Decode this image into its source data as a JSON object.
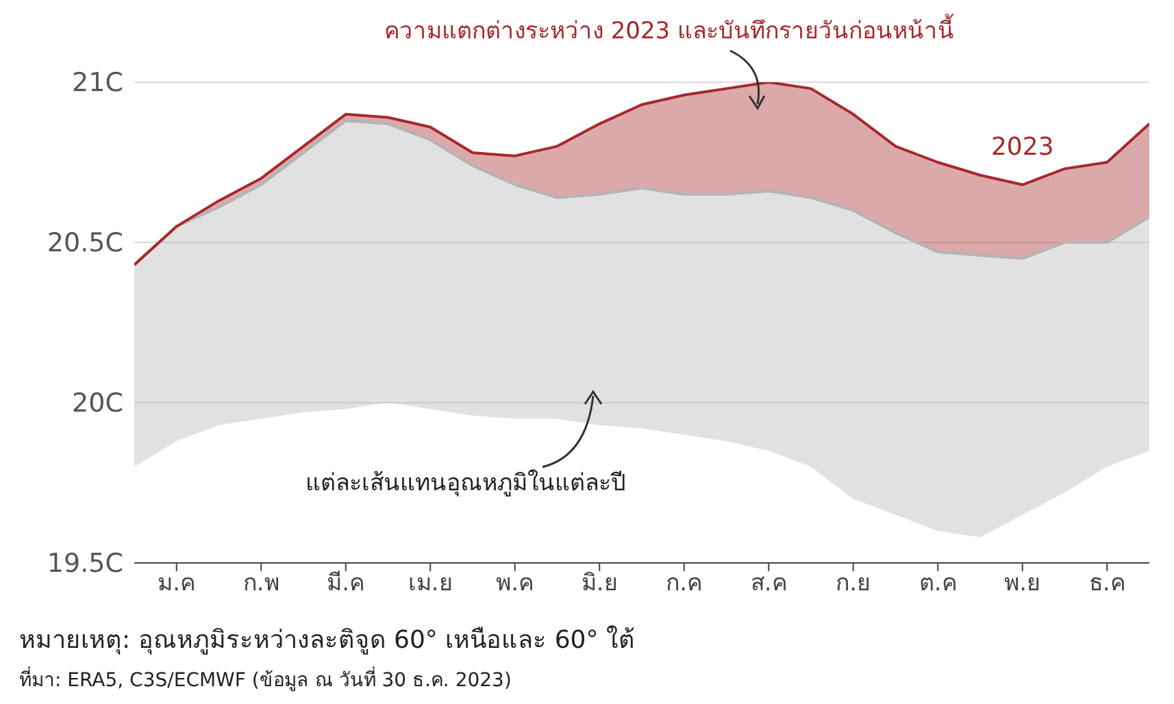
{
  "chart_data": {
    "type": "line",
    "categories": [
      null,
      "ม.ค",
      null,
      "ก.พ",
      null,
      "มี.ค",
      null,
      "เม.ย",
      null,
      "พ.ค",
      null,
      "มิ.ย",
      null,
      "ก.ค",
      null,
      "ส.ค",
      null,
      "ก.ย",
      null,
      "ต.ค",
      null,
      "พ.ย",
      null,
      "ธ.ค",
      null
    ],
    "series": [
      {
        "name": "2023",
        "color": "#a8282c",
        "values": [
          20.43,
          20.55,
          20.63,
          20.7,
          20.8,
          20.9,
          20.89,
          20.86,
          20.78,
          20.77,
          20.8,
          20.87,
          20.93,
          20.96,
          20.98,
          21.0,
          20.98,
          20.9,
          20.8,
          20.75,
          20.71,
          20.68,
          20.73,
          20.75,
          20.87
        ],
        "lower": [
          20.43,
          20.55,
          20.61,
          20.68,
          20.78,
          20.88,
          20.87,
          20.82,
          20.74,
          20.68,
          20.64,
          20.65,
          20.67,
          20.65,
          20.65,
          20.66,
          20.64,
          20.6,
          20.53,
          20.47,
          20.46,
          20.45,
          20.5,
          20.5,
          20.58
        ],
        "upper": [
          20.43,
          20.55,
          20.63,
          20.7,
          20.8,
          20.9,
          20.89,
          20.86,
          20.78,
          20.77,
          20.8,
          20.87,
          20.93,
          20.96,
          20.98,
          21.0,
          20.98,
          20.9,
          20.8,
          20.75,
          20.71,
          20.68,
          20.73,
          20.75,
          20.87
        ]
      },
      {
        "color": "#b4b4b4",
        "values": [
          20.43,
          20.55,
          20.61,
          20.68,
          20.78,
          20.88,
          20.87,
          20.82,
          20.74,
          20.68,
          20.64,
          20.65,
          20.67,
          20.65,
          20.65,
          20.66,
          20.64,
          20.6,
          20.53,
          20.47,
          20.46,
          20.45,
          20.5,
          20.5,
          20.58
        ],
        "lower": [
          19.8,
          19.88,
          19.93,
          19.95,
          19.97,
          19.98,
          20.0,
          19.98,
          19.96,
          19.95,
          19.95,
          19.93,
          19.92,
          19.9,
          19.88,
          19.85,
          19.8,
          19.7,
          19.65,
          19.6,
          19.58,
          19.65,
          19.72,
          19.8,
          19.85
        ],
        "upper": [
          20.43,
          20.55,
          20.61,
          20.68,
          20.78,
          20.88,
          20.87,
          20.82,
          20.74,
          20.68,
          20.64,
          20.65,
          20.67,
          20.65,
          20.65,
          20.66,
          20.64,
          20.6,
          20.53,
          20.47,
          20.46,
          20.45,
          20.5,
          20.5,
          20.58
        ]
      }
    ],
    "ylim": [
      19.5,
      21
    ],
    "yticks": [
      {
        "value": 19.5,
        "label": "19.5C"
      },
      {
        "value": 20,
        "label": "20C"
      },
      {
        "value": 20.5,
        "label": "20.5C"
      },
      {
        "value": 21,
        "label": "21C"
      }
    ],
    "grid": "y",
    "annotations": [
      "ความแตกต่างระหว่าง 2023 และบันทึกรายวันก่อนหน้านี้",
      "แต่ละเส้นแทนอุณหภูมิในแต่ละปี",
      "หมายเหตุ: อุณหภูมิระหว่างละติจูด 60° เหนือและ 60° ใต้",
      "ที่มา: ERA5, C3S/ECMWF (ข้อมูล ณ วันที่ 30 ธ.ค. 2023)"
    ]
  }
}
